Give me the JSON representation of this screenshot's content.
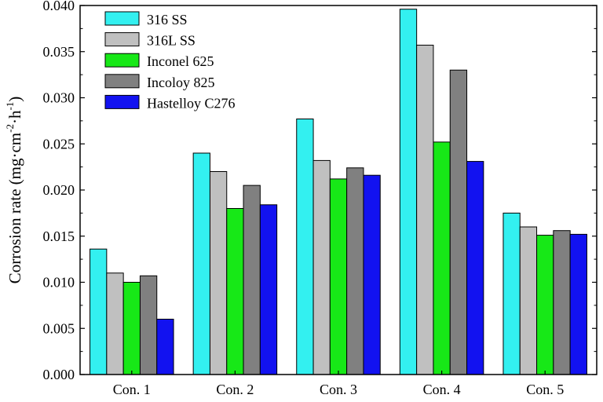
{
  "chart_data": {
    "type": "bar",
    "title": "",
    "xlabel": "",
    "ylabel": {
      "base": "Corrosion rate (mg",
      "dot1": "·",
      "cm": "cm",
      "exp1": "-2",
      "dot2": "·",
      "h": "h",
      "exp2": "-1",
      "close": ")"
    },
    "categories": [
      "Con. 1",
      "Con. 2",
      "Con. 3",
      "Con. 4",
      "Con. 5"
    ],
    "ylim": [
      0,
      0.04
    ],
    "yticks": [
      "0.000",
      "0.005",
      "0.010",
      "0.015",
      "0.020",
      "0.025",
      "0.030",
      "0.035",
      "0.040"
    ],
    "legend_position": "top-left",
    "grid": false,
    "series": [
      {
        "name": "316 SS",
        "color": "#33f0f0",
        "values": [
          0.0136,
          0.024,
          0.0277,
          0.0396,
          0.0175
        ]
      },
      {
        "name": "316L SS",
        "color": "#c0c0c0",
        "values": [
          0.011,
          0.022,
          0.0232,
          0.0357,
          0.016
        ]
      },
      {
        "name": "Inconel 625",
        "color": "#17e817",
        "values": [
          0.01,
          0.018,
          0.0212,
          0.0252,
          0.0151
        ]
      },
      {
        "name": "Incoloy 825",
        "color": "#808080",
        "values": [
          0.0107,
          0.0205,
          0.0224,
          0.033,
          0.0156
        ]
      },
      {
        "name": "Hastelloy C276",
        "color": "#1212f0",
        "values": [
          0.006,
          0.0184,
          0.0216,
          0.0231,
          0.0152
        ]
      }
    ]
  }
}
